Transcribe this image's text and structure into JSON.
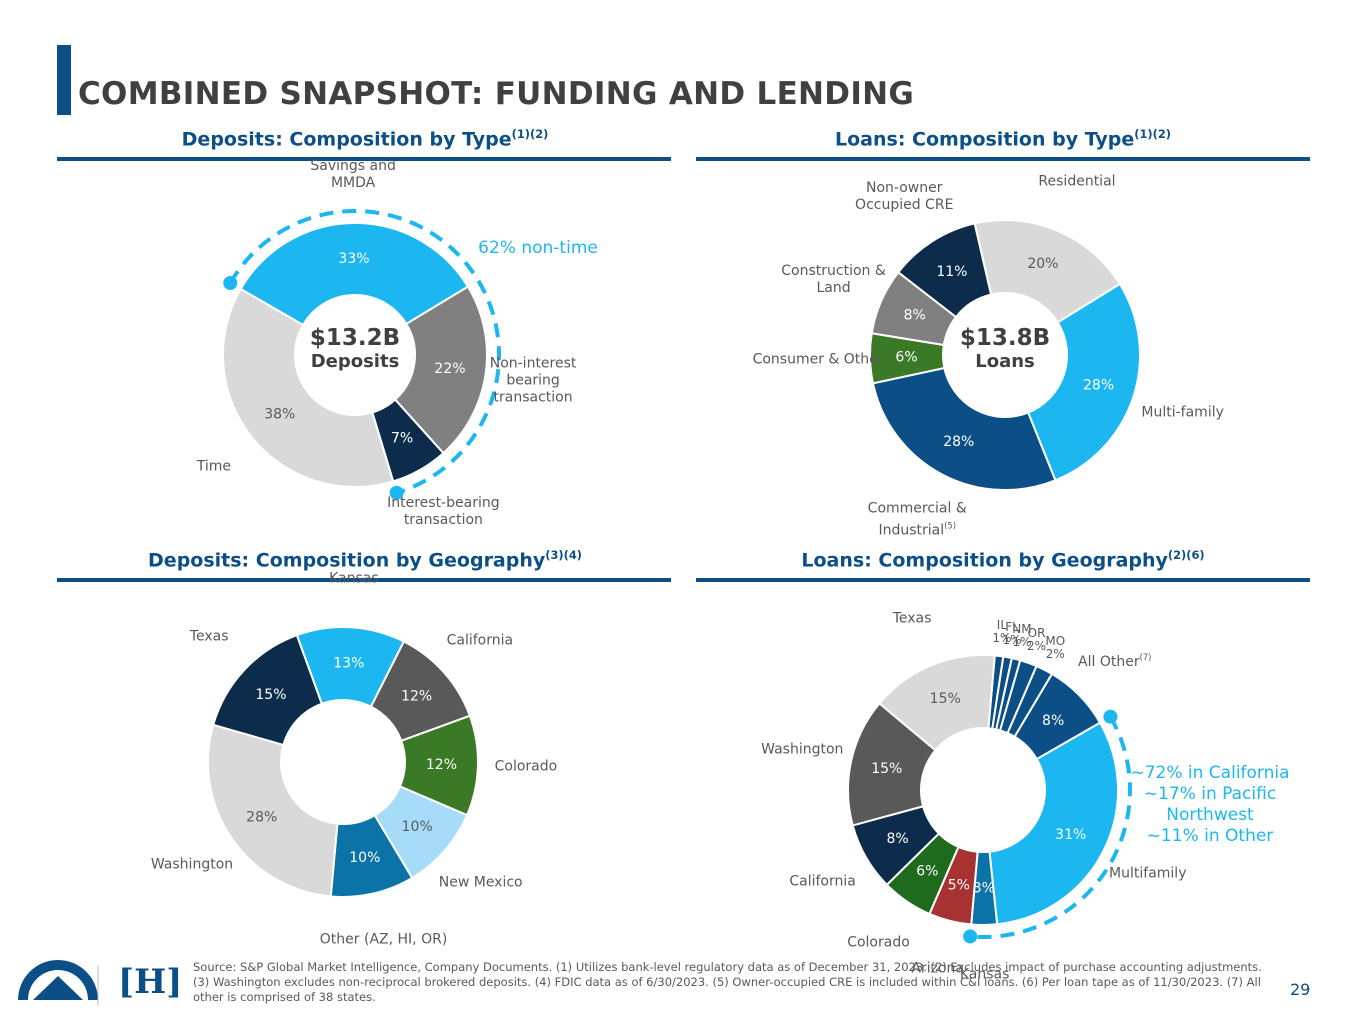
{
  "title": "COMBINED SNAPSHOT: FUNDING AND LENDING",
  "source": "Source: S&P Global Market Intelligence, Company Documents. (1) Utilizes bank-level regulatory data as of December 31, 2023. (2) Excludes impact of purchase accounting adjustments. (3) Washington excludes non-reciprocal brokered deposits. (4) FDIC data as of 6/30/2023. (5) Owner-occupied CRE is included within C&I loans. (6) Per loan tape as of 11/30/2023. (7) All other is comprised of 38 states.",
  "page_number": 29,
  "logo_text": "[H]",
  "chart_data": [
    {
      "type": "donut",
      "title": "Deposits: Composition by Type",
      "title_note": "(1)(2)",
      "center_value": "$13.2B",
      "center_label": "Deposits",
      "categories": [
        "Savings and MMDA",
        "Non-interest bearing transaction",
        "Interest-bearing transaction",
        "Time"
      ],
      "values": [
        33,
        22,
        7,
        38
      ],
      "value_labels": [
        "33%",
        "22%",
        "7%",
        "38%"
      ],
      "colors": [
        "#1cb7f0",
        "#808080",
        "#0d2b4a",
        "#d9d9d9"
      ],
      "annotation": "62% non-time"
    },
    {
      "type": "donut",
      "title": "Loans: Composition by Type",
      "title_note": "(1)(2)",
      "center_value": "$13.8B",
      "center_label": "Loans",
      "categories": [
        "Residential",
        "Multi-family",
        "Commercial & Industrial",
        "Consumer & Other",
        "Construction & Land",
        "Non-owner Occupied CRE"
      ],
      "label_notes": {
        "2": "(5)"
      },
      "values": [
        20,
        28,
        28,
        6,
        8,
        11
      ],
      "value_labels": [
        "20%",
        "28%",
        "28%",
        "6%",
        "8%",
        "11%"
      ],
      "colors": [
        "#d9d9d9",
        "#1cb7f0",
        "#0b4f86",
        "#3a7a26",
        "#808080",
        "#0d2b4a"
      ]
    },
    {
      "type": "donut",
      "title": "Deposits: Composition by Geography",
      "title_note": "(3)(4)",
      "categories": [
        "Kansas",
        "California",
        "Colorado",
        "New Mexico",
        "Other (AZ, HI, OR)",
        "Washington",
        "Texas"
      ],
      "values": [
        13,
        12,
        12,
        10,
        10,
        28,
        15
      ],
      "value_labels": [
        "13%",
        "12%",
        "12%",
        "10%",
        "10%",
        "28%",
        "15%"
      ],
      "colors": [
        "#1cb7f0",
        "#595959",
        "#3a7a26",
        "#a6dcfa",
        "#0b73a8",
        "#d9d9d9",
        "#0d2b4a"
      ]
    },
    {
      "type": "donut",
      "title": "Loans: Composition by Geography",
      "title_note": "(2)(6)",
      "categories": [
        "IL",
        "FL",
        "NM",
        "OR",
        "MO",
        "All Other",
        "Multifamily",
        "Kansas",
        "Arizona",
        "Colorado",
        "California",
        "Washington",
        "Texas"
      ],
      "label_notes": {
        "5": "(7)"
      },
      "values": [
        1,
        1,
        1,
        2,
        2,
        8,
        31,
        3,
        5,
        6,
        8,
        15,
        15
      ],
      "value_labels": [
        "1%",
        "1%",
        "1%",
        "2%",
        "2%",
        "8%",
        "31%",
        "3%",
        "5%",
        "6%",
        "8%",
        "15%",
        "15%"
      ],
      "colors": [
        "#0b4f86",
        "#0b4f86",
        "#0b4f86",
        "#0b4f86",
        "#0b4f86",
        "#0b4f86",
        "#1cb7f0",
        "#0b73a8",
        "#a83232",
        "#1e6b1e",
        "#0d2b4a",
        "#595959",
        "#d9d9d9"
      ],
      "annotation_lines": [
        "~72% in California",
        "~17% in Pacific",
        "Northwest",
        "~11% in Other"
      ]
    }
  ]
}
